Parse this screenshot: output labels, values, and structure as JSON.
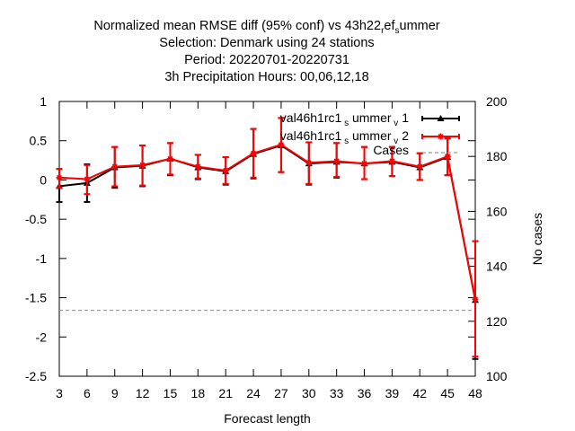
{
  "chart_data": {
    "type": "line",
    "title_lines": [
      [
        "Normalized mean RMSE diff (95% conf) vs 43h22",
        "r",
        "ef",
        "s",
        "ummer"
      ],
      "Selection: Denmark using    24 stations",
      "Period: 20220701-20220731",
      "3h Precipitation   Hours:  00,06,12,18"
    ],
    "xlabel": "Forecast length",
    "ylabel": "",
    "y2label": "No cases",
    "x": [
      3,
      6,
      9,
      12,
      15,
      18,
      21,
      24,
      27,
      30,
      33,
      36,
      39,
      42,
      45,
      48
    ],
    "xticks": [
      "3",
      "6",
      "9",
      "12",
      "15",
      "18",
      "21",
      "24",
      "27",
      "30",
      "33",
      "36",
      "39",
      "42",
      "45",
      "48"
    ],
    "ylim": [
      -2.5,
      1
    ],
    "yticks": [
      "1",
      "0.5",
      "0",
      "-0.5",
      "-1",
      "-1.5",
      "-2",
      "-2.5"
    ],
    "y2lim": [
      100,
      200
    ],
    "y2ticks": [
      "200",
      "180",
      "160",
      "140",
      "120",
      "100"
    ],
    "legend_position": "top-right",
    "series": [
      {
        "name_parts": [
          "val46h1rc1",
          "s",
          "ummer",
          "v",
          "1"
        ],
        "color": "#000000",
        "marker": "triangle",
        "values": [
          -0.08,
          -0.04,
          0.16,
          0.18,
          0.27,
          0.16,
          0.11,
          0.33,
          0.44,
          0.21,
          0.23,
          0.21,
          0.23,
          0.16,
          0.29,
          -1.53
        ],
        "err_low": [
          -0.28,
          -0.28,
          -0.1,
          -0.08,
          0.06,
          0.01,
          -0.06,
          0.02,
          0.1,
          -0.06,
          0.03,
          0.01,
          0.05,
          0.0,
          0.06,
          -2.28
        ],
        "err_high": [
          0.14,
          0.2,
          0.42,
          0.44,
          0.47,
          0.32,
          0.29,
          0.65,
          0.79,
          0.48,
          0.47,
          0.42,
          0.42,
          0.34,
          0.53,
          -0.78
        ]
      },
      {
        "name_parts": [
          "val46h1rc1",
          "s",
          "ummer",
          "v",
          "2"
        ],
        "color": "#ff0000",
        "marker": "star",
        "values": [
          0.03,
          0.01,
          0.17,
          0.19,
          0.27,
          0.17,
          0.12,
          0.34,
          0.45,
          0.22,
          0.24,
          0.21,
          0.24,
          0.17,
          0.3,
          -1.52
        ],
        "err_low": [
          -0.1,
          -0.18,
          -0.08,
          -0.07,
          0.07,
          0.02,
          -0.05,
          0.03,
          0.1,
          -0.05,
          0.04,
          0.01,
          0.05,
          0.0,
          0.06,
          -2.25
        ],
        "err_high": [
          0.14,
          0.19,
          0.42,
          0.44,
          0.47,
          0.32,
          0.29,
          0.65,
          0.79,
          0.48,
          0.47,
          0.42,
          0.42,
          0.34,
          0.53,
          -0.78
        ]
      }
    ],
    "cases": {
      "name": "Cases",
      "color": "#999999",
      "value": 124
    }
  }
}
